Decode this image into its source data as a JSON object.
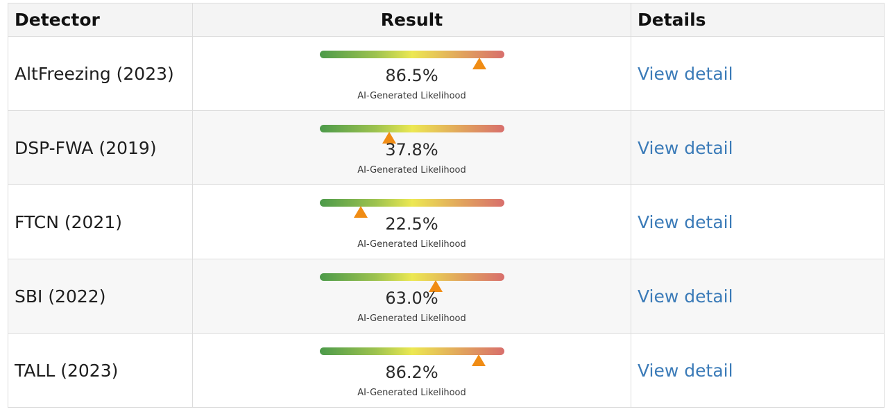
{
  "table": {
    "headers": {
      "detector": "Detector",
      "result": "Result",
      "details": "Details"
    },
    "rows": [
      {
        "detector": "AltFreezing (2023)",
        "likelihood_percent": 86.5,
        "value_label": "86.5%",
        "caption": "AI-Generated Likelihood",
        "link": "View detail"
      },
      {
        "detector": "DSP-FWA (2019)",
        "likelihood_percent": 37.8,
        "value_label": "37.8%",
        "caption": "AI-Generated Likelihood",
        "link": "View detail"
      },
      {
        "detector": "FTCN (2021)",
        "likelihood_percent": 22.5,
        "value_label": "22.5%",
        "caption": "AI-Generated Likelihood",
        "link": "View detail"
      },
      {
        "detector": "SBI (2022)",
        "likelihood_percent": 63.0,
        "value_label": "63.0%",
        "caption": "AI-Generated Likelihood",
        "link": "View detail"
      },
      {
        "detector": "TALL (2023)",
        "likelihood_percent": 86.2,
        "value_label": "86.2%",
        "caption": "AI-Generated Likelihood",
        "link": "View detail"
      }
    ]
  },
  "colors": {
    "link": "#3b7bb8",
    "marker": "#f08c14",
    "gradient": [
      "#4c9a4a",
      "#ece852",
      "#d86f6c"
    ]
  }
}
